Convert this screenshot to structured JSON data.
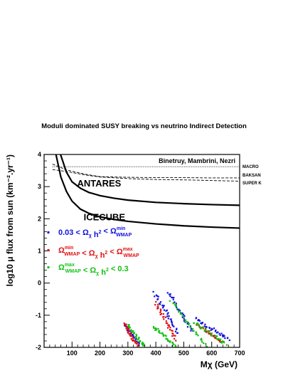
{
  "chart_data": {
    "type": "scatter",
    "title": "Moduli dominated SUSY breaking vs neutrino Indirect Detection",
    "xlabel": "Mχ (GeV)",
    "ylabel": "log10 μ flux from sun (km⁻².yr⁻¹)",
    "xlim": [
      0,
      700
    ],
    "ylim": [
      -2,
      4
    ],
    "x_ticks": [
      "100",
      "200",
      "300",
      "400",
      "500",
      "600",
      "700"
    ],
    "y_ticks": [
      "-2",
      "-1",
      "0",
      "1",
      "2",
      "3",
      "4"
    ],
    "grid": false,
    "credit": "Binetruy, Mambrini, Nezri",
    "experiments": {
      "lines": [
        {
          "name": "ANTARES",
          "style": "solid",
          "x": [
            55,
            80,
            100,
            130,
            160,
            200,
            250,
            300,
            400,
            500,
            600,
            700
          ],
          "y": [
            4.1,
            3.45,
            3.15,
            2.95,
            2.82,
            2.72,
            2.64,
            2.58,
            2.51,
            2.47,
            2.44,
            2.42
          ]
        },
        {
          "name": "ICECUBE",
          "style": "solid",
          "x": [
            40,
            60,
            80,
            100,
            130,
            160,
            200,
            250,
            300,
            400,
            500,
            600,
            700
          ],
          "y": [
            4.1,
            3.3,
            2.85,
            2.55,
            2.3,
            2.17,
            2.06,
            1.98,
            1.92,
            1.84,
            1.78,
            1.74,
            1.71
          ]
        },
        {
          "name": "MACRO",
          "style": "dotted",
          "x": [
            30,
            700
          ],
          "y": [
            3.62,
            3.62
          ]
        },
        {
          "name": "BAKSAN",
          "style": "dashed",
          "x": [
            30,
            80,
            150,
            200,
            300,
            400,
            500,
            600,
            700
          ],
          "y": [
            3.7,
            3.52,
            3.38,
            3.31,
            3.29,
            3.28,
            3.28,
            3.27,
            3.27
          ]
        },
        {
          "name": "SUPER K",
          "style": "dashed",
          "x": [
            30,
            80,
            150,
            200,
            300,
            400,
            500,
            600,
            700
          ],
          "y": [
            3.53,
            3.47,
            3.36,
            3.3,
            3.25,
            3.22,
            3.21,
            3.19,
            3.17
          ]
        }
      ],
      "labels": [
        "ANTARES",
        "ICECUBE",
        "MACRO",
        "BAKSAN",
        "SUPER K"
      ]
    },
    "legend": {
      "placement": "left",
      "entries": [
        {
          "color": "#1010e0",
          "parts": [
            "0.03 < Ω",
            "χ",
            " h",
            "2",
            " < Ω",
            "min",
            "WMAP"
          ]
        },
        {
          "color": "#e01010",
          "parts": [
            "Ω",
            "min",
            "WMAP",
            " < Ω",
            "χ",
            " h",
            "2",
            " < Ω",
            "max",
            "WMAP"
          ]
        },
        {
          "color": "#10c010",
          "parts": [
            "Ω",
            "max",
            "WMAP",
            " < Ω",
            "χ",
            " h",
            "2",
            " < 0.3"
          ]
        }
      ]
    },
    "series": [
      {
        "color": "#1010e0",
        "segments": [
          {
            "x0": 395,
            "y0": -0.3,
            "x1": 480,
            "y1": -1.55
          },
          {
            "x0": 445,
            "y0": -0.28,
            "x1": 530,
            "y1": -1.5
          },
          {
            "x0": 540,
            "y0": -1.1,
            "x1": 660,
            "y1": -1.75
          },
          {
            "x0": 290,
            "y0": -1.3,
            "x1": 340,
            "y1": -1.9
          }
        ]
      },
      {
        "color": "#e01010",
        "segments": [
          {
            "x0": 400,
            "y0": -0.6,
            "x1": 470,
            "y1": -1.75
          },
          {
            "x0": 550,
            "y0": -1.3,
            "x1": 640,
            "y1": -1.85
          },
          {
            "x0": 285,
            "y0": -1.25,
            "x1": 335,
            "y1": -1.95
          }
        ]
      },
      {
        "color": "#10c010",
        "segments": [
          {
            "x0": 300,
            "y0": -1.3,
            "x1": 360,
            "y1": -2.0
          },
          {
            "x0": 390,
            "y0": -1.35,
            "x1": 470,
            "y1": -1.98
          },
          {
            "x0": 455,
            "y0": -0.55,
            "x1": 580,
            "y1": -1.95
          },
          {
            "x0": 535,
            "y0": -1.2,
            "x1": 650,
            "y1": -1.9
          }
        ]
      }
    ]
  }
}
